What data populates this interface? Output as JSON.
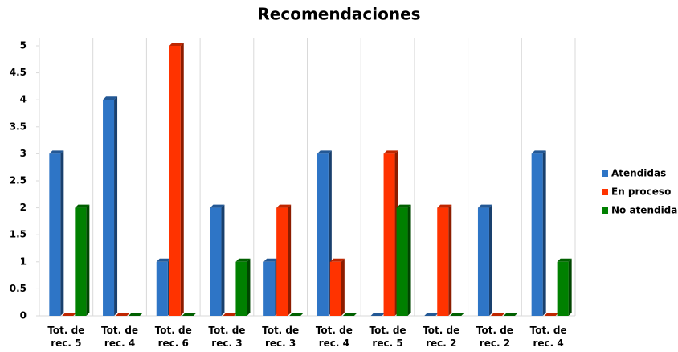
{
  "chart_data": {
    "type": "bar",
    "title": "Recomendaciones",
    "categories": [
      "Tot. de rec. 5",
      "Tot. de rec. 4",
      "Tot. de rec. 6",
      "Tot. de rec. 3",
      "Tot. de rec. 3",
      "Tot. de rec. 4",
      "Tot. de rec. 5",
      "Tot. de rec. 2",
      "Tot. de rec. 2",
      "Tot. de rec. 4"
    ],
    "series": [
      {
        "name": "Atendidas",
        "color": "#2e75c6",
        "values": [
          3,
          4,
          1,
          2,
          1,
          3,
          0,
          0,
          2,
          3
        ]
      },
      {
        "name": "En proceso",
        "color": "#ff3300",
        "values": [
          0,
          0,
          5,
          0,
          2,
          1,
          3,
          2,
          0,
          0
        ]
      },
      {
        "name": "No atendidas",
        "color": "#008000",
        "values": [
          2,
          0,
          0,
          1,
          0,
          0,
          2,
          0,
          0,
          1
        ]
      }
    ],
    "ylim": [
      0,
      5
    ],
    "yticks": [
      0,
      0.5,
      1,
      1.5,
      2,
      2.5,
      3,
      3.5,
      4,
      4.5,
      5
    ],
    "grid": true,
    "legend": "right"
  }
}
